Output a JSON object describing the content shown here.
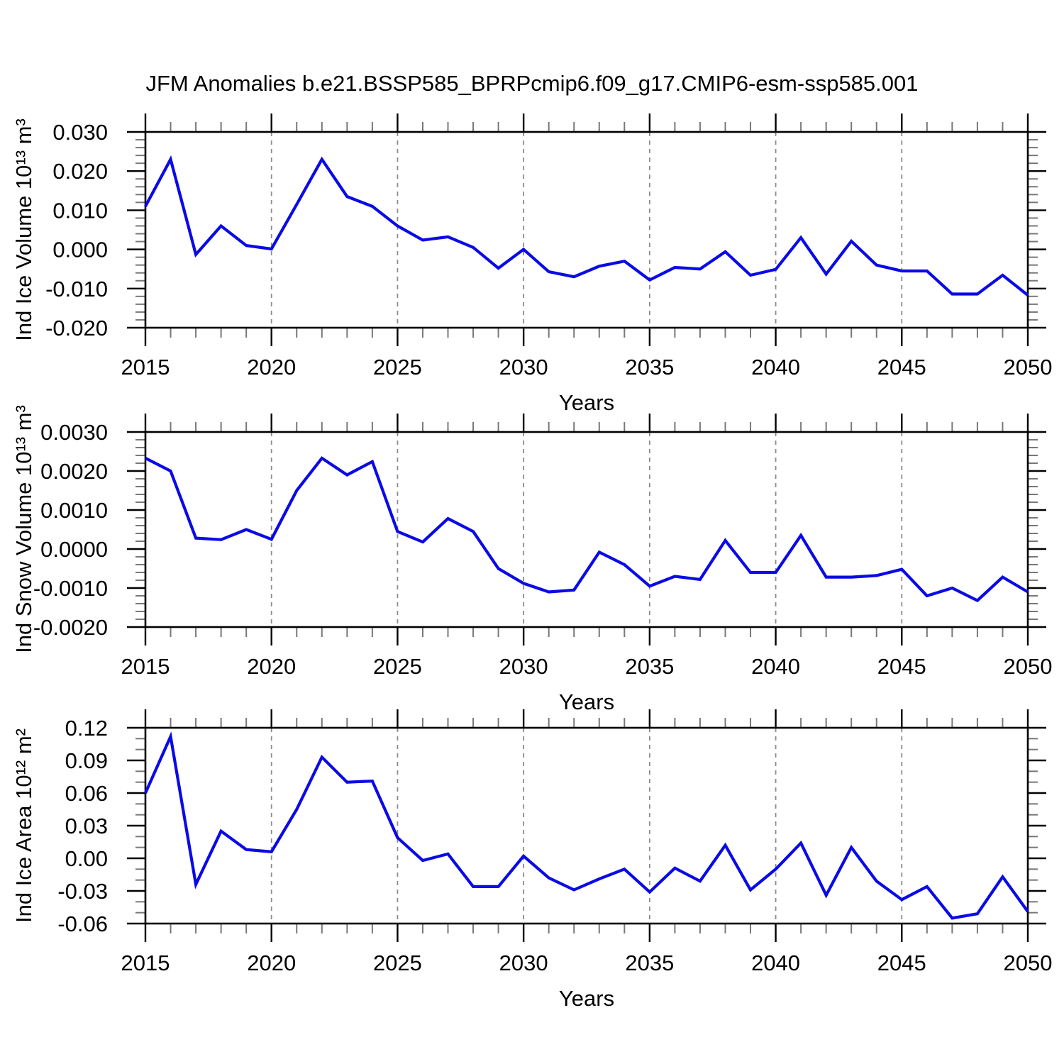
{
  "title": "JFM Anomalies b.e21.BSSP585_BPRPcmip6.f09_g17.CMIP6-esm-ssp585.001",
  "x_axis": {
    "label": "Years",
    "min": 2015,
    "max": 2050,
    "major_step": 5,
    "minor_step": 1,
    "tick_labels": [
      "2015",
      "2020",
      "2025",
      "2030",
      "2035",
      "2040",
      "2045",
      "2050"
    ],
    "gridline_years": [
      2020,
      2025,
      2030,
      2035,
      2040,
      2045
    ],
    "years": [
      2015,
      2016,
      2017,
      2018,
      2019,
      2020,
      2021,
      2022,
      2023,
      2024,
      2025,
      2026,
      2027,
      2028,
      2029,
      2030,
      2031,
      2032,
      2033,
      2034,
      2035,
      2036,
      2037,
      2038,
      2039,
      2040,
      2041,
      2042,
      2043,
      2044,
      2045,
      2046,
      2047,
      2048,
      2049,
      2050
    ]
  },
  "style": {
    "line_color": "#0a0ae6",
    "frame_color": "#000000",
    "minor_tick_color": "#787878",
    "gridline_color": "#8c8c8c",
    "text_color": "#000000"
  },
  "chart_data": [
    {
      "type": "line",
      "name": "ice-volume",
      "ylabel": "Ind Ice Volume 10¹³ m³",
      "xlabel": "Years",
      "ylim": [
        -0.02,
        0.03
      ],
      "ymajor_step": 0.01,
      "yminor_step": 0.002,
      "ytick_labels": [
        "0.030",
        "0.020",
        "0.010",
        "0.000",
        "-0.010",
        "-0.020"
      ],
      "grid": "vertical-dashed",
      "legend": "none",
      "values": [
        0.011,
        0.023,
        -0.0013,
        0.006,
        0.001,
        0.0001,
        0.0115,
        0.023,
        0.0135,
        0.011,
        0.006,
        0.0024,
        0.0032,
        0.0005,
        -0.0048,
        0.0,
        -0.0057,
        -0.007,
        -0.0043,
        -0.003,
        -0.0078,
        -0.0046,
        -0.005,
        -0.0006,
        -0.0066,
        -0.0051,
        0.003,
        -0.0063,
        0.0021,
        -0.004,
        -0.0055,
        -0.0055,
        -0.0114,
        -0.0114,
        -0.0066,
        -0.0117
      ]
    },
    {
      "type": "line",
      "name": "snow-volume",
      "ylabel": "Ind Snow Volume 10¹³ m³",
      "xlabel": "Years",
      "ylim": [
        -0.002,
        0.003
      ],
      "ymajor_step": 0.001,
      "yminor_step": 0.0002,
      "ytick_labels": [
        "0.0030",
        "0.0020",
        "0.0010",
        "0.0000",
        "-0.0010",
        "-0.0020"
      ],
      "grid": "vertical-dashed",
      "legend": "none",
      "values": [
        0.00233,
        0.002,
        0.00028,
        0.00024,
        0.0005,
        0.00025,
        0.0015,
        0.00233,
        0.0019,
        0.00224,
        0.00045,
        0.00018,
        0.00078,
        0.00045,
        -0.0005,
        -0.00088,
        -0.0011,
        -0.00105,
        -8e-05,
        -0.0004,
        -0.00095,
        -0.0007,
        -0.00078,
        0.00022,
        -0.0006,
        -0.0006,
        0.00035,
        -0.00072,
        -0.00072,
        -0.00068,
        -0.00052,
        -0.0012,
        -0.001,
        -0.00132,
        -0.00072,
        -0.0011
      ]
    },
    {
      "type": "line",
      "name": "ice-area",
      "ylabel": "Ind Ice Area 10¹² m²",
      "xlabel": "Years",
      "ylim": [
        -0.06,
        0.12
      ],
      "ymajor_step": 0.03,
      "yminor_step": 0.01,
      "ytick_labels": [
        "0.12",
        "0.09",
        "0.06",
        "0.03",
        "0.00",
        "-0.03",
        "-0.06"
      ],
      "grid": "vertical-dashed",
      "legend": "none",
      "values": [
        0.06,
        0.112,
        -0.024,
        0.025,
        0.008,
        0.006,
        0.045,
        0.093,
        0.07,
        0.071,
        0.019,
        -0.002,
        0.004,
        -0.026,
        -0.026,
        0.002,
        -0.018,
        -0.029,
        -0.019,
        -0.01,
        -0.031,
        -0.009,
        -0.021,
        0.012,
        -0.029,
        -0.01,
        0.014,
        -0.034,
        0.01,
        -0.021,
        -0.038,
        -0.026,
        -0.055,
        -0.051,
        -0.017,
        -0.049
      ]
    }
  ]
}
